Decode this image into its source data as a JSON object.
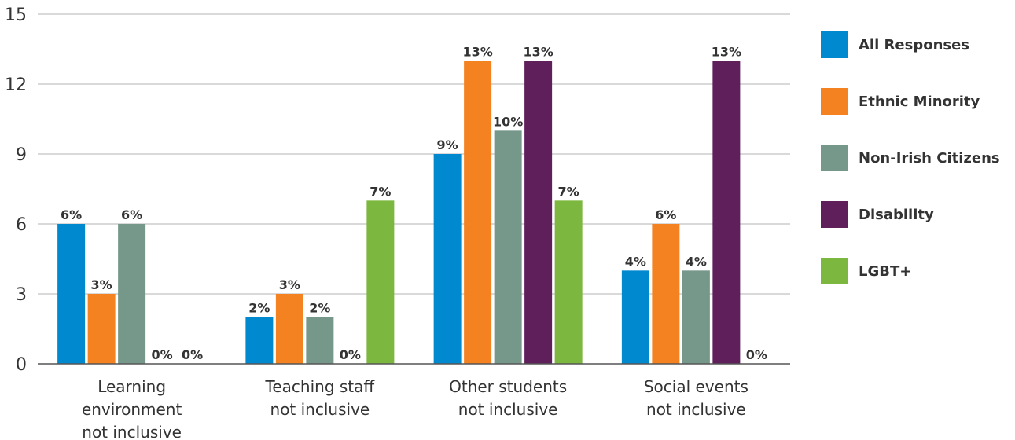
{
  "chart_data": {
    "type": "bar",
    "categories": [
      [
        "Learning",
        "environment",
        "not inclusive"
      ],
      [
        "Teaching staff",
        "not inclusive"
      ],
      [
        "Other students",
        "not inclusive"
      ],
      [
        "Social events",
        "not inclusive"
      ]
    ],
    "series": [
      {
        "name": "All Responses",
        "color": "#0089cf",
        "values": [
          6,
          2,
          9,
          4
        ],
        "labels": [
          "6%",
          "2%",
          "9%",
          "4%"
        ]
      },
      {
        "name": "Ethnic Minority",
        "color": "#f58220",
        "values": [
          3,
          3,
          13,
          6
        ],
        "labels": [
          "3%",
          "3%",
          "13%",
          "6%"
        ]
      },
      {
        "name": "Non-Irish Citizens",
        "color": "#76988a",
        "values": [
          6,
          2,
          10,
          4
        ],
        "labels": [
          "6%",
          "2%",
          "10%",
          "4%"
        ]
      },
      {
        "name": "Disability",
        "color": "#5e1f5a",
        "values": [
          0,
          0,
          13,
          13
        ],
        "labels": [
          "0%",
          "0%",
          "13%",
          "13%"
        ]
      },
      {
        "name": "LGBT+",
        "color": "#7cb83f",
        "values": [
          0,
          7,
          7,
          0
        ],
        "labels": [
          "0%",
          "7%",
          "7%",
          "0%"
        ]
      }
    ],
    "yticks": [
      0,
      3,
      6,
      9,
      12,
      15
    ],
    "ylim": [
      0,
      15
    ],
    "grid": true,
    "legend_position": "right"
  }
}
